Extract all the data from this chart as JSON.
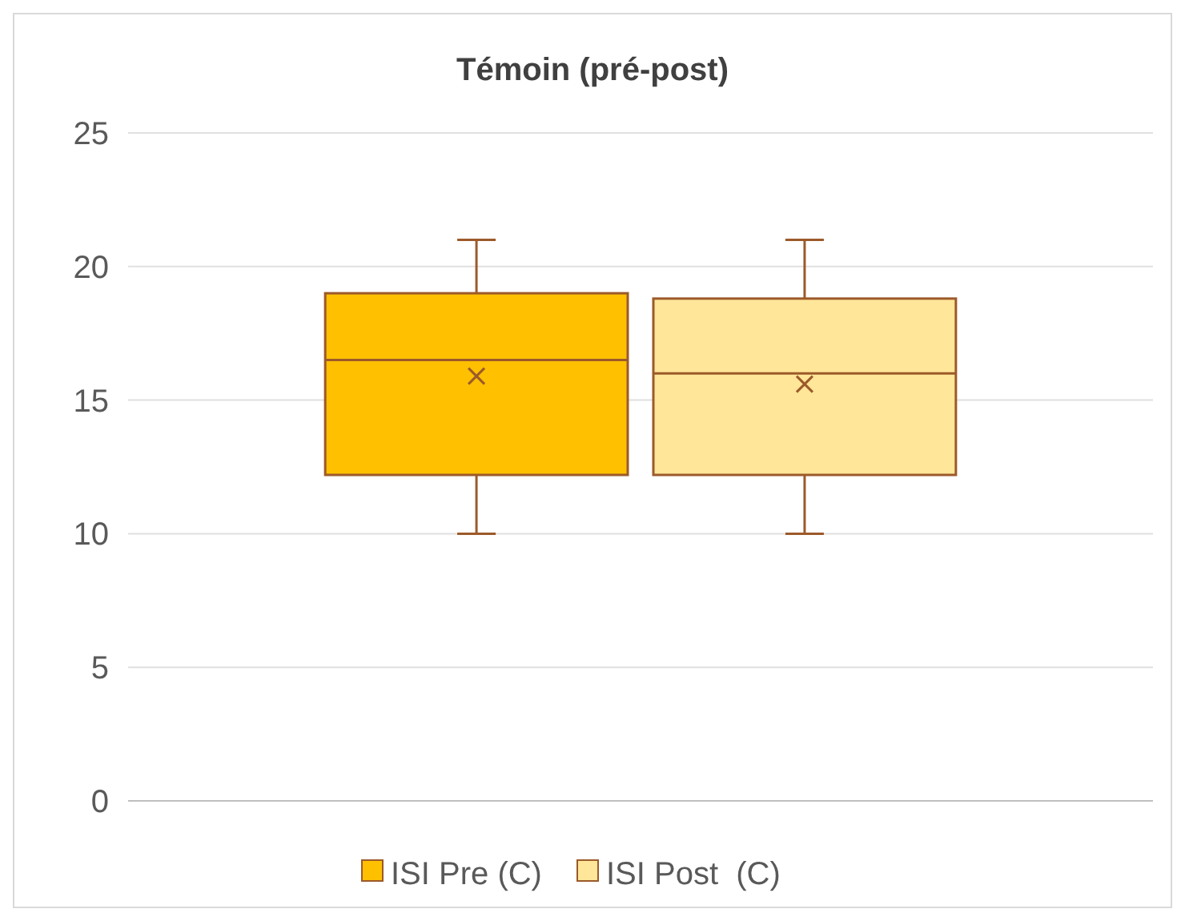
{
  "chart_data": {
    "type": "box",
    "title": "Témoin (pré-post)",
    "categories": [
      null
    ],
    "series": [
      {
        "name": "ISI Pre (C)",
        "color": "#ffc000",
        "boxes": [
          {
            "low": 10,
            "q1": 12.2,
            "median": 16.5,
            "q3": 19,
            "high": 21,
            "mean": 15.9
          }
        ]
      },
      {
        "name": "ISI Post  (C)",
        "color": "#ffe699",
        "boxes": [
          {
            "low": 10,
            "q1": 12.2,
            "median": 16,
            "q3": 18.8,
            "high": 21,
            "mean": 15.6
          }
        ]
      }
    ],
    "ylim": [
      0,
      25
    ],
    "yticks": [
      0,
      5,
      10,
      15,
      20,
      25
    ],
    "grid": "y",
    "legend": "bottom",
    "marker": "cross"
  }
}
